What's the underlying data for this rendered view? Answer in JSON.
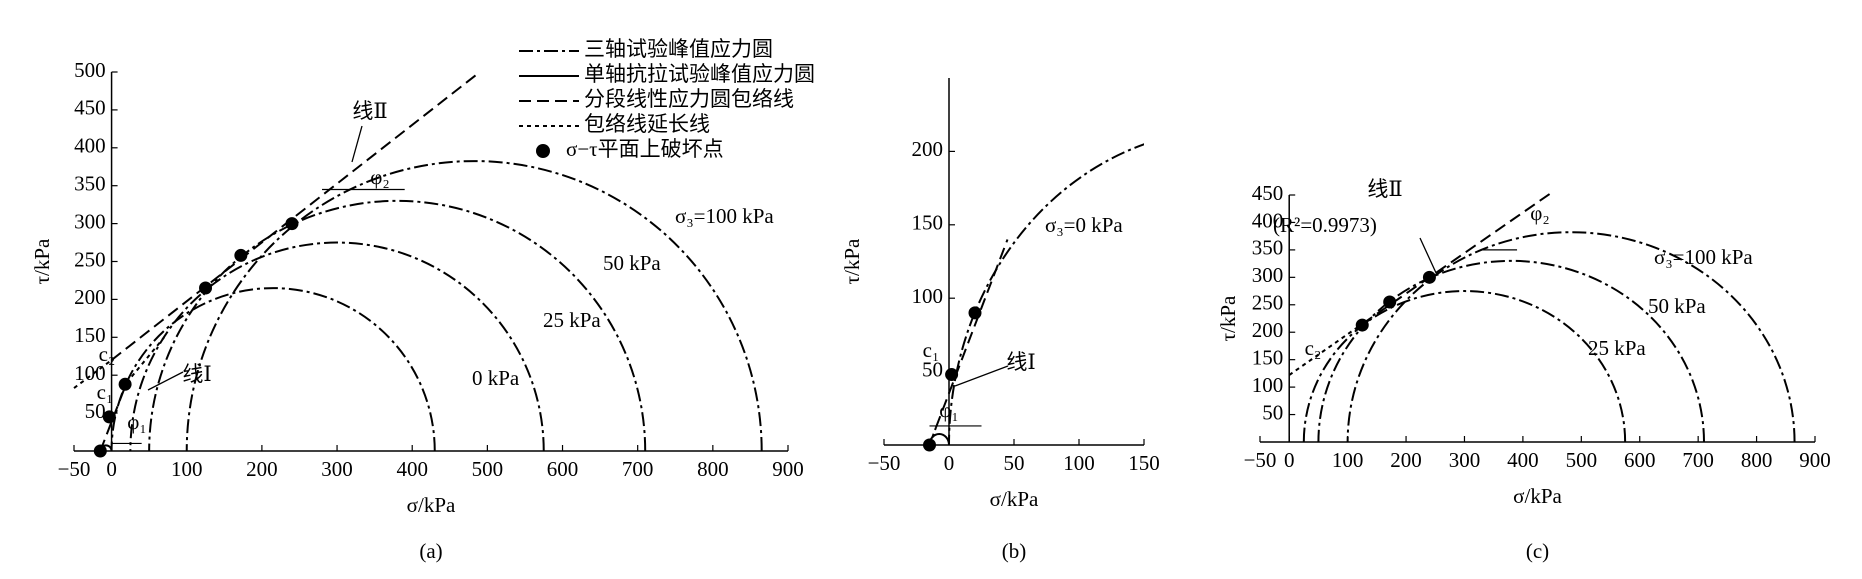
{
  "legend": {
    "entries": [
      {
        "name": "三轴试验峰值应力圆",
        "style": "dashdot"
      },
      {
        "name": "单轴抗拉试验峰值应力圆",
        "style": "solid"
      },
      {
        "name": "分段线性应力圆包络线",
        "style": "dash"
      },
      {
        "name": "包络线延长线",
        "style": "dot"
      },
      {
        "name": "σ−τ平面上破坏点",
        "style": "point"
      }
    ]
  },
  "chart_data": [
    {
      "type": "mohr",
      "panel": "(a)",
      "xlabel": "σ/kPa",
      "ylabel": "τ/kPa",
      "color": "#000000",
      "xlim": [
        -50,
        900
      ],
      "ylim": [
        0,
        500
      ],
      "xticks": [
        {
          "value": -50,
          "label": "−50"
        },
        0,
        100,
        200,
        300,
        400,
        500,
        600,
        700,
        800,
        900
      ],
      "yticks": [
        50,
        100,
        150,
        200,
        250,
        300,
        350,
        400,
        450,
        500
      ],
      "circles": [
        {
          "label": "0 kPa",
          "sigma3": 0,
          "sigma1": 430,
          "style": "dashdot"
        },
        {
          "label": "25 kPa",
          "sigma3": 25,
          "sigma1": 575,
          "style": "dashdot"
        },
        {
          "label": "50 kPa",
          "sigma3": 50,
          "sigma1": 710,
          "style": "dashdot"
        },
        {
          "label": "σ₃=100 kPa",
          "sigma3": 100,
          "sigma1": 865,
          "style": "dashdot"
        },
        {
          "sigma3": -15,
          "sigma1": 0,
          "style": "solid"
        }
      ],
      "points": {
        "x": [
          -15,
          -3,
          18,
          125,
          172,
          240
        ],
        "y": [
          0,
          45,
          88,
          215,
          258,
          300
        ]
      },
      "lines": [
        {
          "style": "dash",
          "x": [
            0,
            490
          ],
          "y": [
            120,
            500
          ]
        },
        {
          "style": "dot",
          "x": [
            -50,
            0
          ],
          "y": [
            83,
            120
          ]
        },
        {
          "style": "dash",
          "x": [
            -15,
            20
          ],
          "y": [
            0,
            90
          ]
        },
        {
          "style": "dot",
          "x": [
            20,
            70
          ],
          "y": [
            90,
            150
          ]
        }
      ],
      "annotations": [
        "线Ⅱ",
        "线Ⅰ",
        "c₂",
        "c₁",
        "φ₂",
        "φ₁"
      ]
    },
    {
      "type": "mohr",
      "panel": "(b)",
      "xlabel": "σ/kPa",
      "ylabel": "τ/kPa",
      "color": "#000000",
      "xlim": [
        -50,
        150
      ],
      "ylim": [
        0,
        250
      ],
      "xticks": [
        {
          "value": -50,
          "label": "−50"
        },
        0,
        50,
        100,
        150
      ],
      "yticks": [
        50,
        100,
        150,
        200
      ],
      "circles": [
        {
          "label": "σ₃=0 kPa",
          "sigma3": 0,
          "sigma1": 430,
          "style": "dashdot"
        },
        {
          "sigma3": -15,
          "sigma1": 0,
          "style": "solid"
        }
      ],
      "points": {
        "x": [
          -15,
          2,
          20
        ],
        "y": [
          0,
          48,
          90
        ]
      },
      "lines": [
        {
          "style": "dash",
          "x": [
            -10,
            45
          ],
          "y": [
            12,
            140
          ]
        },
        {
          "style": "dot",
          "x": [
            -15,
            -10
          ],
          "y": [
            0,
            12
          ]
        }
      ],
      "annotations": [
        "c₁",
        "线Ⅰ",
        "φ₁"
      ]
    },
    {
      "type": "mohr",
      "panel": "(c)",
      "xlabel": "σ/kPa",
      "ylabel": "τ/kPa",
      "color": "#000000",
      "xlim": [
        -50,
        900
      ],
      "ylim": [
        0,
        450
      ],
      "xticks": [
        {
          "value": -50,
          "label": "−50"
        },
        0,
        100,
        200,
        300,
        400,
        500,
        600,
        700,
        800,
        900
      ],
      "yticks": [
        50,
        100,
        150,
        200,
        250,
        300,
        350,
        400,
        450
      ],
      "circles": [
        {
          "label": "25 kPa",
          "sigma3": 25,
          "sigma1": 575,
          "style": "dashdot"
        },
        {
          "label": "50 kPa",
          "sigma3": 50,
          "sigma1": 710,
          "style": "dashdot"
        },
        {
          "label": "σ₃=100 kPa",
          "sigma3": 100,
          "sigma1": 865,
          "style": "dashdot"
        }
      ],
      "points": {
        "x": [
          125,
          172,
          240
        ],
        "y": [
          213,
          255,
          300
        ]
      },
      "lines": [
        {
          "style": "dash",
          "x": [
            125,
            450
          ],
          "y": [
            215,
            455
          ]
        },
        {
          "style": "dot",
          "x": [
            0,
            125
          ],
          "y": [
            122,
            215
          ]
        }
      ],
      "annotations": [
        "线Ⅱ",
        "(R²=0.9973)",
        "c₂",
        "φ₂"
      ]
    }
  ]
}
